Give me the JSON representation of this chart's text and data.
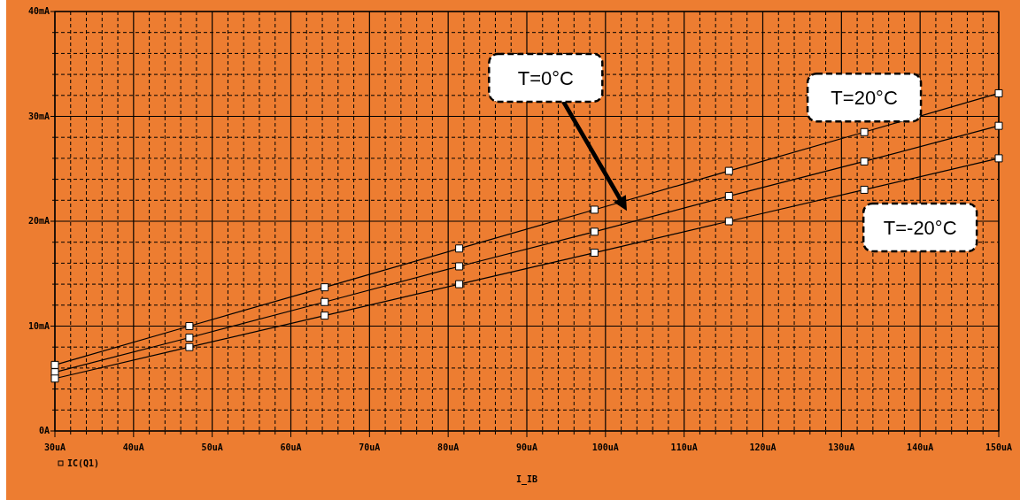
{
  "chart_data": {
    "type": "line",
    "xlabel": "I_IB",
    "marker": "square",
    "grid": true,
    "xlim": [
      30,
      150
    ],
    "ylim": [
      0,
      40
    ],
    "xticks": [
      {
        "value": 30,
        "label": "30uA"
      },
      {
        "value": 32,
        "label": null
      },
      {
        "value": 34,
        "label": null
      },
      {
        "value": 36,
        "label": null
      },
      {
        "value": 38,
        "label": null
      },
      {
        "value": 40,
        "label": "40uA"
      },
      {
        "value": 42,
        "label": null
      },
      {
        "value": 44,
        "label": null
      },
      {
        "value": 46,
        "label": null
      },
      {
        "value": 48,
        "label": null
      },
      {
        "value": 50,
        "label": "50uA"
      },
      {
        "value": 52,
        "label": null
      },
      {
        "value": 54,
        "label": null
      },
      {
        "value": 56,
        "label": null
      },
      {
        "value": 58,
        "label": null
      },
      {
        "value": 60,
        "label": "60uA"
      },
      {
        "value": 62,
        "label": null
      },
      {
        "value": 64,
        "label": null
      },
      {
        "value": 66,
        "label": null
      },
      {
        "value": 68,
        "label": null
      },
      {
        "value": 70,
        "label": "70uA"
      },
      {
        "value": 72,
        "label": null
      },
      {
        "value": 74,
        "label": null
      },
      {
        "value": 76,
        "label": null
      },
      {
        "value": 78,
        "label": null
      },
      {
        "value": 80,
        "label": "80uA"
      },
      {
        "value": 82,
        "label": null
      },
      {
        "value": 84,
        "label": null
      },
      {
        "value": 86,
        "label": null
      },
      {
        "value": 88,
        "label": null
      },
      {
        "value": 90,
        "label": "90uA"
      },
      {
        "value": 92,
        "label": null
      },
      {
        "value": 94,
        "label": null
      },
      {
        "value": 96,
        "label": null
      },
      {
        "value": 98,
        "label": null
      },
      {
        "value": 100,
        "label": "100uA"
      },
      {
        "value": 102,
        "label": null
      },
      {
        "value": 104,
        "label": null
      },
      {
        "value": 106,
        "label": null
      },
      {
        "value": 108,
        "label": null
      },
      {
        "value": 110,
        "label": "110uA"
      },
      {
        "value": 112,
        "label": null
      },
      {
        "value": 114,
        "label": null
      },
      {
        "value": 116,
        "label": null
      },
      {
        "value": 118,
        "label": null
      },
      {
        "value": 120,
        "label": "120uA"
      },
      {
        "value": 122,
        "label": null
      },
      {
        "value": 124,
        "label": null
      },
      {
        "value": 126,
        "label": null
      },
      {
        "value": 128,
        "label": null
      },
      {
        "value": 130,
        "label": "130uA"
      },
      {
        "value": 132,
        "label": null
      },
      {
        "value": 134,
        "label": null
      },
      {
        "value": 136,
        "label": null
      },
      {
        "value": 138,
        "label": null
      },
      {
        "value": 140,
        "label": "140uA"
      },
      {
        "value": 142,
        "label": null
      },
      {
        "value": 144,
        "label": null
      },
      {
        "value": 146,
        "label": null
      },
      {
        "value": 148,
        "label": null
      },
      {
        "value": 150,
        "label": "150uA"
      }
    ],
    "yticks": [
      {
        "value": 0,
        "label": "0A"
      },
      {
        "value": 2,
        "label": null
      },
      {
        "value": 4,
        "label": null
      },
      {
        "value": 6,
        "label": null
      },
      {
        "value": 8,
        "label": null
      },
      {
        "value": 10,
        "label": "10mA"
      },
      {
        "value": 12,
        "label": null
      },
      {
        "value": 14,
        "label": null
      },
      {
        "value": 16,
        "label": null
      },
      {
        "value": 18,
        "label": null
      },
      {
        "value": 20,
        "label": "20mA"
      },
      {
        "value": 22,
        "label": null
      },
      {
        "value": 24,
        "label": null
      },
      {
        "value": 26,
        "label": null
      },
      {
        "value": 28,
        "label": null
      },
      {
        "value": 30,
        "label": "30mA"
      },
      {
        "value": 32,
        "label": null
      },
      {
        "value": 34,
        "label": null
      },
      {
        "value": 36,
        "label": null
      },
      {
        "value": 38,
        "label": null
      },
      {
        "value": 40,
        "label": "40mA"
      }
    ],
    "x": [
      30,
      47.1,
      64.3,
      81.4,
      98.6,
      115.7,
      132.9,
      150
    ],
    "series": [
      {
        "color": "#000000",
        "values": [
          6.3,
          10.0,
          13.7,
          17.4,
          21.1,
          24.8,
          28.5,
          32.2
        ]
      },
      {
        "color": "#000000",
        "values": [
          5.6,
          8.9,
          12.3,
          15.7,
          19.0,
          22.4,
          25.7,
          29.1
        ]
      },
      {
        "color": "#000000",
        "values": [
          5.0,
          8.0,
          11.0,
          14.0,
          17.0,
          20.0,
          23.0,
          26.0
        ]
      }
    ],
    "annotations": [
      "T=0°C",
      {
        "text": "T=20°C",
        "x": 132.9,
        "y": 28.5
      },
      {
        "text": "T=-20°C",
        "x": 140,
        "y": 24.3
      },
      "IC(Q1)"
    ]
  }
}
